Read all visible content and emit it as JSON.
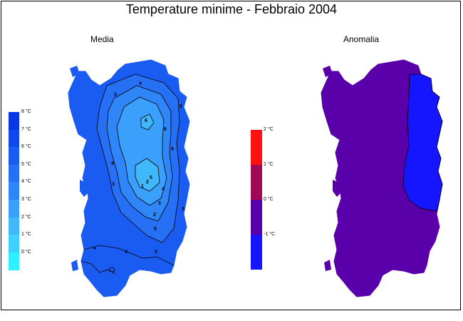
{
  "title": "Temperature minime - Febbraio 2004",
  "panels": {
    "media": {
      "title": "Media"
    },
    "anomalia": {
      "title": "Anomalia"
    }
  },
  "legend_media": {
    "labels": [
      "8 °C",
      "7 °C",
      "6 °C",
      "5 °C",
      "4 °C",
      "3 °C",
      "2 °C",
      "1 °C",
      "0 °C"
    ],
    "colors": [
      "#0a37e6",
      "#0f48ee",
      "#1a5cf2",
      "#2670f5",
      "#2f86f8",
      "#3aa0fb",
      "#3fb8fc",
      "#3fd0fd",
      "#2ff0ff"
    ]
  },
  "legend_anomalia": {
    "labels": [
      "2 °C",
      "1 °C",
      "0 °C",
      "-1 °C"
    ],
    "colors": [
      "#ff1010",
      "#a00a55",
      "#5a00aa",
      "#1515ff"
    ]
  },
  "contour_labels": [
    "3",
    "4",
    "5",
    "6",
    "6",
    "5",
    "4",
    "3",
    "3",
    "3",
    "4",
    "5",
    "5",
    "4",
    "3",
    "2",
    "2",
    "4",
    "1"
  ]
}
